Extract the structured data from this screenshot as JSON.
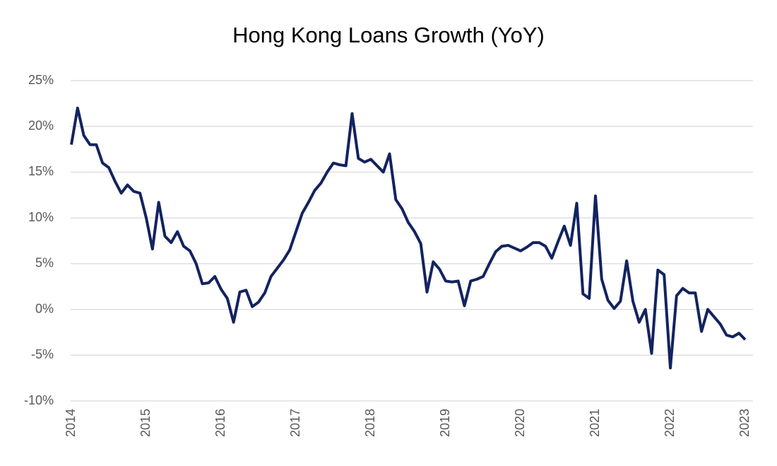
{
  "chart_data": {
    "type": "line",
    "title": "Hong Kong Loans Growth (YoY)",
    "categories": [
      "2014",
      null,
      null,
      null,
      null,
      null,
      null,
      null,
      null,
      null,
      null,
      null,
      "2015",
      null,
      null,
      null,
      null,
      null,
      null,
      null,
      null,
      null,
      null,
      null,
      "2016",
      null,
      null,
      null,
      null,
      null,
      null,
      null,
      null,
      null,
      null,
      null,
      "2017",
      null,
      null,
      null,
      null,
      null,
      null,
      null,
      null,
      null,
      null,
      null,
      "2018",
      null,
      null,
      null,
      null,
      null,
      null,
      null,
      null,
      null,
      null,
      null,
      "2019",
      null,
      null,
      null,
      null,
      null,
      null,
      null,
      null,
      null,
      null,
      null,
      "2020",
      null,
      null,
      null,
      null,
      null,
      null,
      null,
      null,
      null,
      null,
      null,
      "2021",
      null,
      null,
      null,
      null,
      null,
      null,
      null,
      null,
      null,
      null,
      null,
      "2022",
      null,
      null,
      null,
      null,
      null,
      null,
      null,
      null,
      null,
      null,
      null,
      "2023"
    ],
    "series": [
      {
        "color": "#13235f",
        "values": [
          18,
          22,
          19,
          18,
          18,
          16,
          15.5,
          14,
          12.7,
          13.6,
          12.9,
          12.7,
          10,
          6.6,
          11.7,
          8,
          7.3,
          8.5,
          6.9,
          6.4,
          5,
          2.8,
          2.9,
          3.6,
          2.2,
          1.2,
          -1.4,
          1.9,
          2.1,
          0.3,
          0.8,
          1.8,
          3.6,
          4.5,
          5.4,
          6.5,
          8.5,
          10.5,
          11.7,
          13,
          13.8,
          15,
          16,
          15.8,
          15.7,
          21.4,
          16.5,
          16.1,
          16.4,
          15.7,
          15,
          17,
          12,
          11,
          9.5,
          8.5,
          7.2,
          1.9,
          5.2,
          4.4,
          3.1,
          3,
          3.1,
          0.4,
          3.1,
          3.3,
          3.6,
          5,
          6.3,
          6.9,
          7,
          6.7,
          6.4,
          6.8,
          7.3,
          7.3,
          6.9,
          5.6,
          7.4,
          9.1,
          7,
          11.6,
          1.7,
          1.2,
          12.4,
          3.3,
          1,
          0.1,
          0.9,
          5.3,
          0.9,
          -1.4,
          0,
          -4.8,
          4.3,
          3.8,
          -6.4,
          1.5,
          2.3,
          1.8,
          1.8,
          -2.4,
          0,
          -0.8,
          -1.6,
          -2.8,
          -3,
          -2.6,
          -3.3
        ]
      }
    ],
    "ylim": [
      -10,
      25
    ],
    "yticks": [
      {
        "value": -10,
        "label": "-10%"
      },
      {
        "value": -5,
        "label": "-5%"
      },
      {
        "value": 0,
        "label": "0%"
      },
      {
        "value": 5,
        "label": "5%"
      },
      {
        "value": 10,
        "label": "10%"
      },
      {
        "value": 15,
        "label": "15%"
      },
      {
        "value": 20,
        "label": "20%"
      },
      {
        "value": 25,
        "label": "25%"
      }
    ],
    "grid": true
  }
}
